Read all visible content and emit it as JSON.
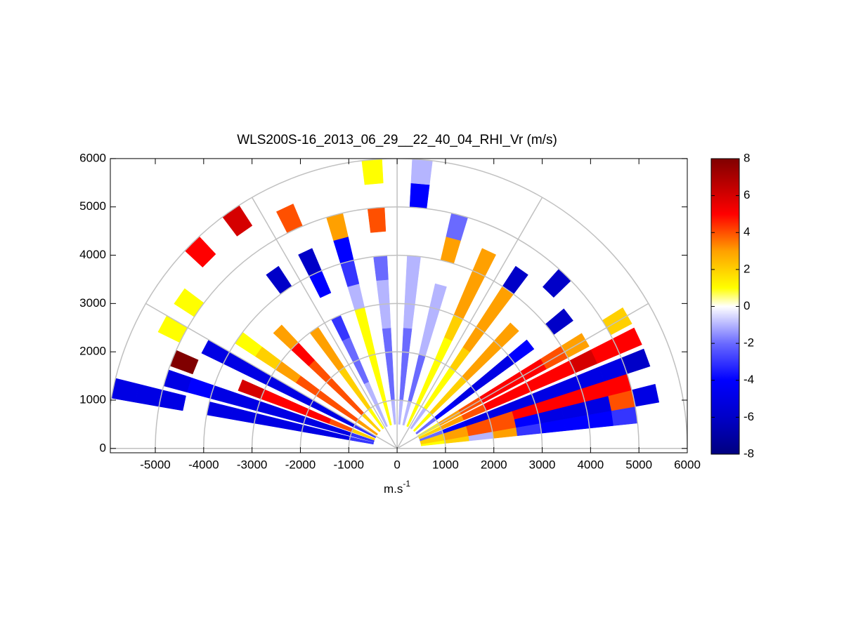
{
  "chart_data": {
    "type": "rhi",
    "title": "WLS200S-16_2013_06_29__22_40_04_RHI_Vr (m/s)",
    "xlabel": "m.s",
    "xlabel_superscript": "-1",
    "xlim": [
      -5930,
      6000
    ],
    "ylim": [
      -90,
      6000
    ],
    "xticks": [
      -5000,
      -4000,
      -3000,
      -2000,
      -1000,
      0,
      1000,
      2000,
      3000,
      4000,
      5000,
      6000
    ],
    "yticks": [
      0,
      1000,
      2000,
      3000,
      4000,
      5000,
      6000
    ],
    "grid": true,
    "rings": [
      1000,
      2000,
      3000,
      4000,
      5000,
      6000
    ],
    "spokes": [
      0,
      30,
      60,
      90,
      120,
      150,
      180
    ],
    "beam_width": 4,
    "ranges": [
      0,
      500,
      1000,
      1500,
      2000,
      2500,
      3000,
      3500,
      4000,
      4500,
      5000,
      5500,
      6000
    ],
    "angles": [
      8,
      12,
      16,
      20,
      25,
      30,
      38,
      46,
      55,
      65,
      75,
      85,
      95,
      105,
      115,
      125,
      135,
      145,
      152,
      158,
      163,
      168
    ],
    "values": [
      [
        null,
        1,
        2,
        -1,
        3,
        -3,
        -4,
        -4,
        -4,
        -3,
        null,
        null
      ],
      [
        null,
        2,
        3,
        4,
        4,
        -4,
        -5,
        -5,
        -5,
        4,
        -5,
        null
      ],
      [
        null,
        2,
        3,
        4,
        4,
        5,
        5,
        5,
        5,
        5,
        null,
        null
      ],
      [
        null,
        -2,
        -4,
        -5,
        -5,
        -5,
        -5,
        -5,
        -5,
        -5,
        -6,
        null
      ],
      [
        null,
        2,
        3,
        4,
        5,
        5,
        5,
        5,
        6,
        5,
        5,
        null
      ],
      [
        null,
        1,
        3,
        4,
        5,
        5,
        5,
        4,
        3,
        null,
        2,
        null
      ],
      [
        null,
        -2,
        -4,
        -5,
        -5,
        -5,
        -4,
        null,
        -6,
        null,
        null,
        null
      ],
      [
        null,
        1,
        2,
        2,
        3,
        3,
        3,
        null,
        null,
        -6,
        null,
        null
      ],
      [
        null,
        -1,
        1,
        1,
        2,
        3,
        3,
        3,
        -6,
        null,
        null,
        null
      ],
      [
        null,
        1,
        1,
        1,
        1,
        2,
        3,
        3,
        3,
        null,
        null,
        null
      ],
      [
        null,
        -1,
        -2,
        -2,
        -1,
        -1,
        -1,
        null,
        3,
        -2,
        null,
        null
      ],
      [
        null,
        -1,
        -2,
        -2,
        -2,
        -1,
        -1,
        -1,
        null,
        null,
        -4,
        -1
      ],
      [
        null,
        -1,
        -2,
        -2,
        -2,
        -1,
        -1,
        -2,
        null,
        4,
        null,
        1
      ],
      [
        null,
        1,
        1,
        1,
        1,
        1,
        -1,
        -3,
        -4,
        3,
        null,
        null
      ],
      [
        null,
        -1,
        -1,
        -2,
        -2,
        -3,
        null,
        -4,
        -6,
        null,
        4,
        null
      ],
      [
        null,
        1,
        2,
        2,
        3,
        3,
        null,
        null,
        -6,
        null,
        null,
        6
      ],
      [
        null,
        2,
        4,
        4,
        4,
        5,
        3,
        null,
        null,
        null,
        null,
        5
      ],
      [
        null,
        3,
        4,
        4,
        4,
        3,
        2,
        1,
        null,
        null,
        1,
        null
      ],
      [
        null,
        -3,
        -5,
        -5,
        -5,
        -5,
        -5,
        -5,
        -5,
        null,
        1,
        null
      ],
      [
        null,
        2,
        4,
        5,
        5,
        5,
        6,
        null,
        null,
        8,
        null,
        null
      ],
      [
        null,
        -3,
        -5,
        -5,
        -5,
        -5,
        -5,
        -5,
        -4,
        -5,
        null,
        null
      ],
      [
        null,
        -3,
        -5,
        -5,
        -5,
        -5,
        -5,
        -5,
        null,
        -5,
        -5,
        -5
      ]
    ],
    "clim": [
      -8,
      8
    ],
    "cticks": [
      -8,
      -6,
      -4,
      -2,
      0,
      2,
      4,
      6,
      8
    ],
    "colormap": [
      {
        "value": -8,
        "color": "#00007f"
      },
      {
        "value": -6,
        "color": "#0000c8"
      },
      {
        "value": -4,
        "color": "#0000ff"
      },
      {
        "value": -2,
        "color": "#6a6aff"
      },
      {
        "value": 0,
        "color": "#ffffff"
      },
      {
        "value": 1,
        "color": "#ffff00"
      },
      {
        "value": 3,
        "color": "#ffa000"
      },
      {
        "value": 5,
        "color": "#ff0000"
      },
      {
        "value": 8,
        "color": "#800000"
      }
    ]
  }
}
